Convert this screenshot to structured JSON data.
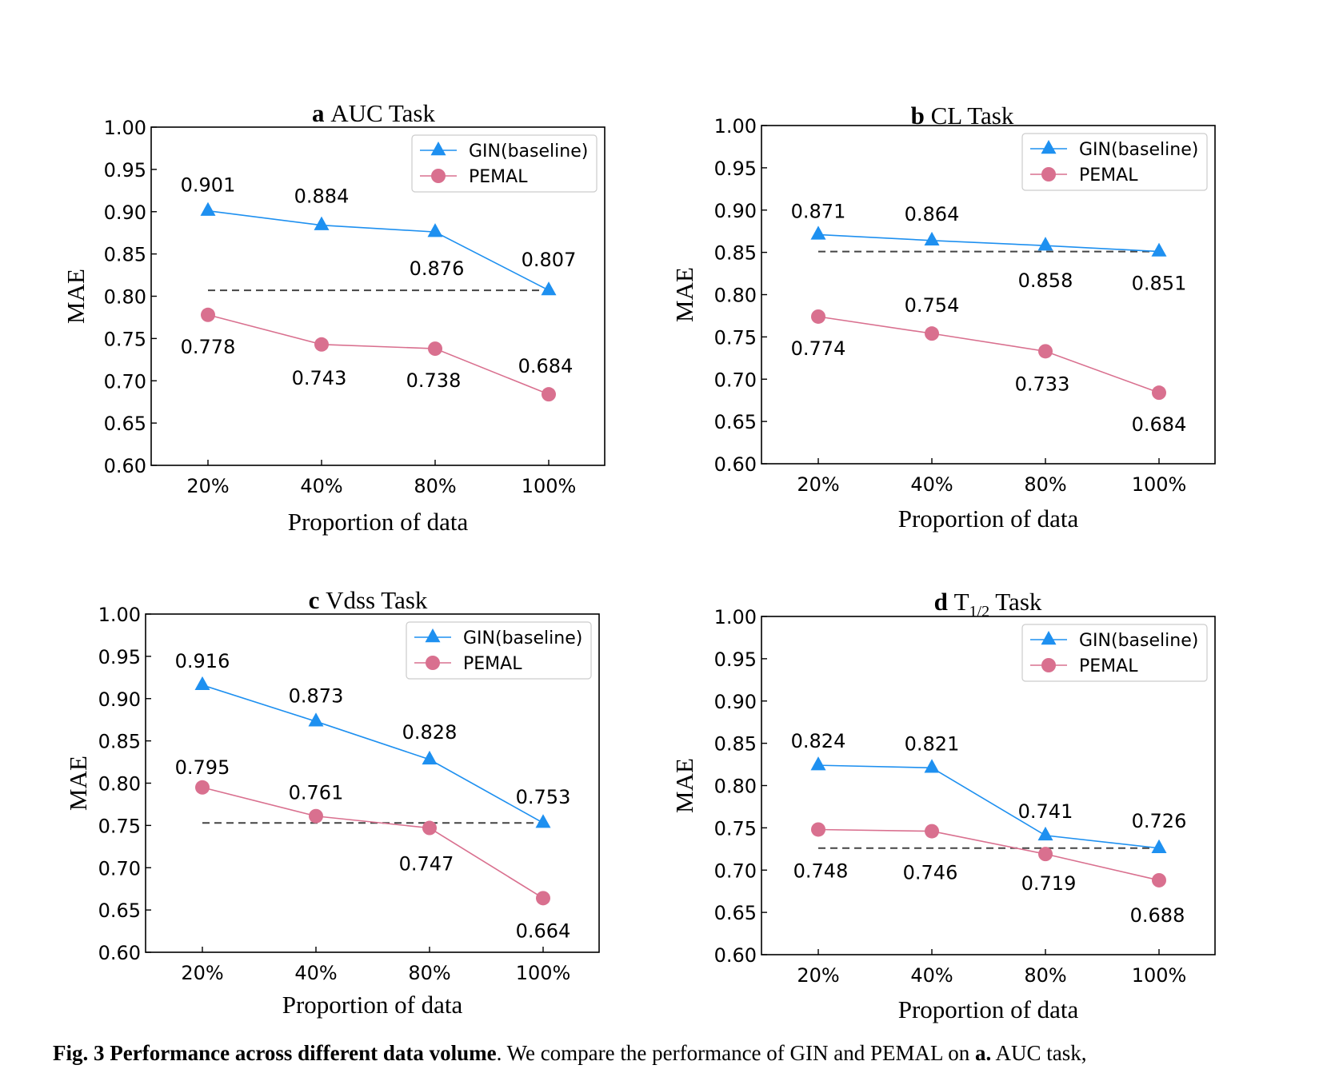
{
  "charts": [
    {
      "letter": "a",
      "title": "AUC Task",
      "title_sub": "",
      "title_after": "",
      "xlabel": "Proportion of data",
      "ylabel": "MAE",
      "categories": [
        "20%",
        "40%",
        "80%",
        "100%"
      ],
      "ylim": [
        0.6,
        1.0
      ],
      "yticks": [
        "0.60",
        "0.65",
        "0.70",
        "0.75",
        "0.80",
        "0.85",
        "0.90",
        "0.95",
        "1.00"
      ],
      "legend": [
        "GIN(baseline)",
        "PEMAL"
      ],
      "baseline_line": 0.807,
      "gin": [
        0.901,
        0.884,
        0.876,
        0.807
      ],
      "pemal": [
        0.778,
        0.743,
        0.738,
        0.684
      ],
      "gin_labels": [
        "0.901",
        "0.884",
        "0.876",
        "0.807"
      ],
      "pemal_labels": [
        "0.778",
        "0.743",
        "0.738",
        "0.684"
      ]
    },
    {
      "letter": "b",
      "title": "CL Task",
      "title_sub": "",
      "title_after": "",
      "xlabel": "Proportion of data",
      "ylabel": "MAE",
      "categories": [
        "20%",
        "40%",
        "80%",
        "100%"
      ],
      "ylim": [
        0.6,
        1.0
      ],
      "yticks": [
        "0.60",
        "0.65",
        "0.70",
        "0.75",
        "0.80",
        "0.85",
        "0.90",
        "0.95",
        "1.00"
      ],
      "legend": [
        "GIN(baseline)",
        "PEMAL"
      ],
      "baseline_line": 0.851,
      "gin": [
        0.871,
        0.864,
        0.858,
        0.851
      ],
      "pemal": [
        0.774,
        0.754,
        0.733,
        0.684
      ],
      "gin_labels": [
        "0.871",
        "0.864",
        "0.858",
        "0.851"
      ],
      "pemal_labels": [
        "0.774",
        "0.754",
        "0.733",
        "0.684"
      ]
    },
    {
      "letter": "c",
      "title": "Vdss Task",
      "title_sub": "",
      "title_after": "",
      "xlabel": "Proportion of data",
      "ylabel": "MAE",
      "categories": [
        "20%",
        "40%",
        "80%",
        "100%"
      ],
      "ylim": [
        0.6,
        1.0
      ],
      "yticks": [
        "0.60",
        "0.65",
        "0.70",
        "0.75",
        "0.80",
        "0.85",
        "0.90",
        "0.95",
        "1.00"
      ],
      "legend": [
        "GIN(baseline)",
        "PEMAL"
      ],
      "baseline_line": 0.753,
      "gin": [
        0.916,
        0.873,
        0.828,
        0.753
      ],
      "pemal": [
        0.795,
        0.761,
        0.747,
        0.664
      ],
      "gin_labels": [
        "0.916",
        "0.873",
        "0.828",
        "0.753"
      ],
      "pemal_labels": [
        "0.795",
        "0.761",
        "0.747",
        "0.664"
      ]
    },
    {
      "letter": "d",
      "title": "T",
      "title_sub": "1/2",
      "title_after": " Task",
      "xlabel": "Proportion of data",
      "ylabel": "MAE",
      "categories": [
        "20%",
        "40%",
        "80%",
        "100%"
      ],
      "ylim": [
        0.6,
        1.0
      ],
      "yticks": [
        "0.60",
        "0.65",
        "0.70",
        "0.75",
        "0.80",
        "0.85",
        "0.90",
        "0.95",
        "1.00"
      ],
      "legend": [
        "GIN(baseline)",
        "PEMAL"
      ],
      "baseline_line": 0.726,
      "gin": [
        0.824,
        0.821,
        0.741,
        0.726
      ],
      "pemal": [
        0.748,
        0.746,
        0.719,
        0.688
      ],
      "gin_labels": [
        "0.824",
        "0.821",
        "0.741",
        "0.726"
      ],
      "pemal_labels": [
        "0.748",
        "0.746",
        "0.719",
        "0.688"
      ]
    }
  ],
  "colors": {
    "gin": "#1e90f0",
    "pemal": "#d9708f",
    "baseline": "#444444"
  },
  "caption": {
    "bold_prefix": "Fig. 3 Performance across different data volume",
    "text": ". We compare the performance of GIN and PEMAL on ",
    "bold_a": "a.",
    "text_end": " AUC task,"
  },
  "chart_data": [
    {
      "type": "line",
      "title": "a AUC Task",
      "xlabel": "Proportion of data",
      "ylabel": "MAE",
      "categories": [
        "20%",
        "40%",
        "80%",
        "100%"
      ],
      "ylim": [
        0.6,
        1.0
      ],
      "legend_position": "top-right",
      "series": [
        {
          "name": "GIN(baseline)",
          "values": [
            0.901,
            0.884,
            0.876,
            0.807
          ]
        },
        {
          "name": "PEMAL",
          "values": [
            0.778,
            0.743,
            0.738,
            0.684
          ]
        }
      ],
      "reference_line": 0.807
    },
    {
      "type": "line",
      "title": "b CL Task",
      "xlabel": "Proportion of data",
      "ylabel": "MAE",
      "categories": [
        "20%",
        "40%",
        "80%",
        "100%"
      ],
      "ylim": [
        0.6,
        1.0
      ],
      "legend_position": "top-right",
      "series": [
        {
          "name": "GIN(baseline)",
          "values": [
            0.871,
            0.864,
            0.858,
            0.851
          ]
        },
        {
          "name": "PEMAL",
          "values": [
            0.774,
            0.754,
            0.733,
            0.684
          ]
        }
      ],
      "reference_line": 0.851
    },
    {
      "type": "line",
      "title": "c Vdss Task",
      "xlabel": "Proportion of data",
      "ylabel": "MAE",
      "categories": [
        "20%",
        "40%",
        "80%",
        "100%"
      ],
      "ylim": [
        0.6,
        1.0
      ],
      "legend_position": "top-right",
      "series": [
        {
          "name": "GIN(baseline)",
          "values": [
            0.916,
            0.873,
            0.828,
            0.753
          ]
        },
        {
          "name": "PEMAL",
          "values": [
            0.795,
            0.761,
            0.747,
            0.664
          ]
        }
      ],
      "reference_line": 0.753
    },
    {
      "type": "line",
      "title": "d T1/2 Task",
      "xlabel": "Proportion of data",
      "ylabel": "MAE",
      "categories": [
        "20%",
        "40%",
        "80%",
        "100%"
      ],
      "ylim": [
        0.6,
        1.0
      ],
      "legend_position": "top-right",
      "series": [
        {
          "name": "GIN(baseline)",
          "values": [
            0.824,
            0.821,
            0.741,
            0.726
          ]
        },
        {
          "name": "PEMAL",
          "values": [
            0.748,
            0.746,
            0.719,
            0.688
          ]
        }
      ],
      "reference_line": 0.726
    }
  ]
}
